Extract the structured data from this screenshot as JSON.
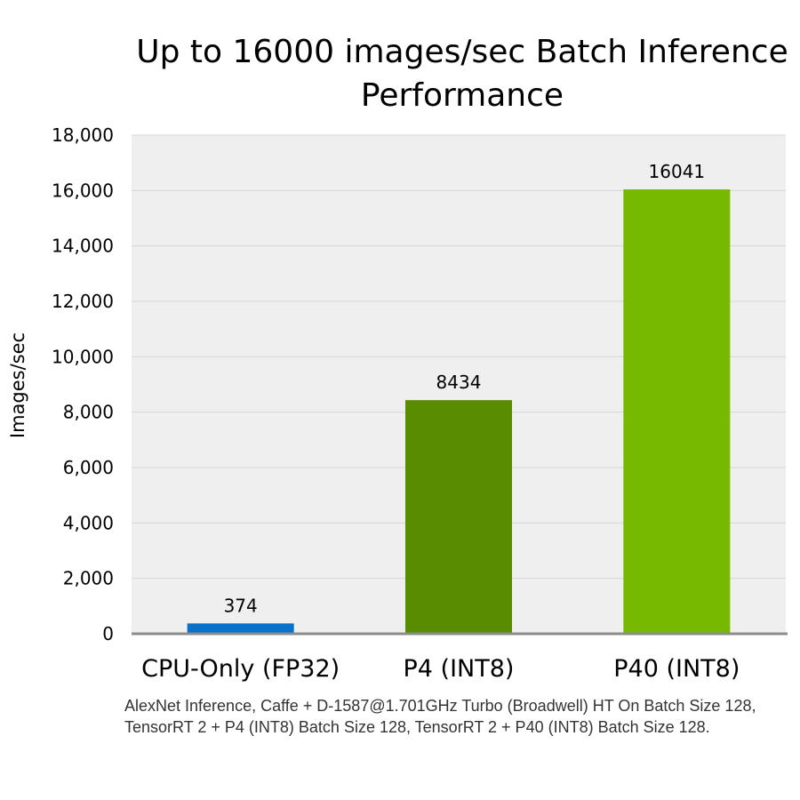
{
  "chart_data": {
    "type": "bar",
    "title_lines": [
      "Up to 16000 images/sec Batch Inference",
      "Performance"
    ],
    "ylabel": "Images/sec",
    "xlabel": "",
    "categories": [
      "CPU-Only (FP32)",
      "P4 (INT8)",
      "P40 (INT8)"
    ],
    "values": [
      374,
      8434,
      16041
    ],
    "data_labels": [
      "374",
      "8434",
      "16041"
    ],
    "colors": [
      "#0a71c9",
      "#5a8c00",
      "#76b900"
    ],
    "ylim": [
      0,
      18000
    ],
    "yticks": [
      0,
      2000,
      4000,
      6000,
      8000,
      10000,
      12000,
      14000,
      16000,
      18000
    ],
    "ytick_labels": [
      "0",
      "2,000",
      "4,000",
      "6,000",
      "8,000",
      "10,000",
      "12,000",
      "14,000",
      "16,000",
      "18,000"
    ],
    "grid": true,
    "legend": "none",
    "plot_background": "#efefef"
  },
  "footnote": "AlexNet Inference, Caffe + D-1587@1.701GHz Turbo (Broadwell) HT On Batch Size 128, TensorRT 2 + P4 (INT8) Batch Size 128, TensorRT 2 + P40 (INT8) Batch Size 128."
}
